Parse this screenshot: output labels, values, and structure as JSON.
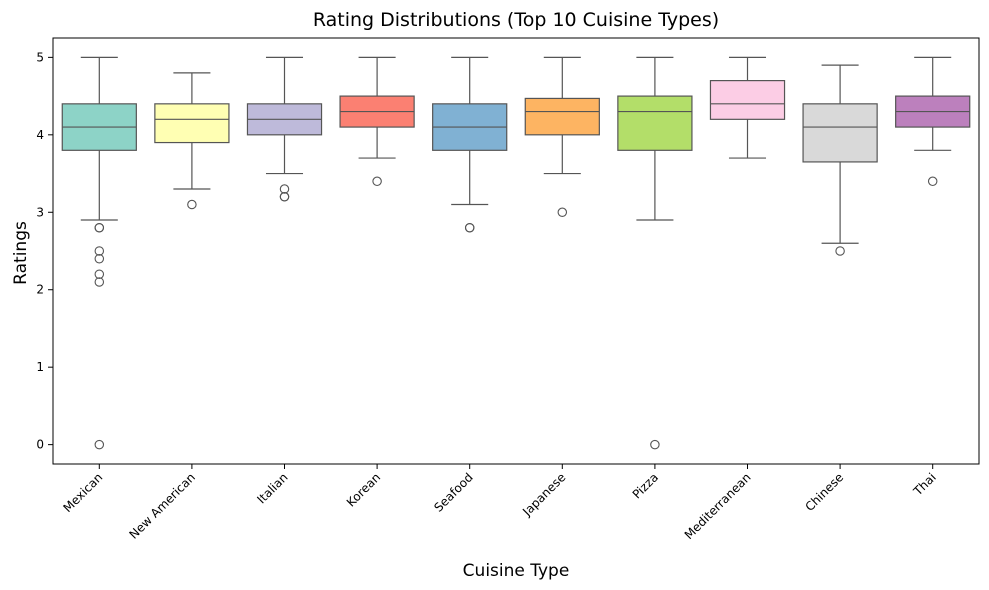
{
  "chart_data": {
    "type": "box",
    "title": "Rating Distributions (Top 10 Cuisine Types)",
    "xlabel": "Cuisine Type",
    "ylabel": "Ratings",
    "ylim": [
      -0.25,
      5.25
    ],
    "yticks": [
      0,
      1,
      2,
      3,
      4,
      5
    ],
    "grid": false,
    "categories": [
      "Mexican",
      "New American",
      "Italian",
      "Korean",
      "Seafood",
      "Japanese",
      "Pizza",
      "Mediterranean",
      "Chinese",
      "Thai"
    ],
    "colors": [
      "#8dd3c7",
      "#ffffb3",
      "#bebada",
      "#fb8072",
      "#80b1d3",
      "#fdb462",
      "#b3de69",
      "#fccde5",
      "#d9d9d9",
      "#bc80bd"
    ],
    "boxes": [
      {
        "whisker_low": 2.9,
        "q1": 3.8,
        "median": 4.1,
        "q3": 4.4,
        "whisker_high": 5.0,
        "outliers": [
          2.8,
          2.8,
          2.5,
          2.4,
          2.2,
          2.1,
          0.0
        ]
      },
      {
        "whisker_low": 3.3,
        "q1": 3.9,
        "median": 4.2,
        "q3": 4.4,
        "whisker_high": 4.8,
        "outliers": [
          3.1
        ]
      },
      {
        "whisker_low": 3.5,
        "q1": 4.0,
        "median": 4.2,
        "q3": 4.4,
        "whisker_high": 5.0,
        "outliers": [
          3.3,
          3.2,
          3.2
        ]
      },
      {
        "whisker_low": 3.7,
        "q1": 4.1,
        "median": 4.3,
        "q3": 4.5,
        "whisker_high": 5.0,
        "outliers": [
          3.4
        ]
      },
      {
        "whisker_low": 3.1,
        "q1": 3.8,
        "median": 4.1,
        "q3": 4.4,
        "whisker_high": 5.0,
        "outliers": [
          2.8,
          2.8
        ]
      },
      {
        "whisker_low": 3.5,
        "q1": 4.0,
        "median": 4.3,
        "q3": 4.47,
        "whisker_high": 5.0,
        "outliers": [
          3.0
        ]
      },
      {
        "whisker_low": 2.9,
        "q1": 3.8,
        "median": 4.3,
        "q3": 4.5,
        "whisker_high": 5.0,
        "outliers": [
          0.0
        ]
      },
      {
        "whisker_low": 3.7,
        "q1": 4.2,
        "median": 4.4,
        "q3": 4.7,
        "whisker_high": 5.0,
        "outliers": []
      },
      {
        "whisker_low": 2.6,
        "q1": 3.65,
        "median": 4.1,
        "q3": 4.4,
        "whisker_high": 4.9,
        "outliers": [
          2.5
        ]
      },
      {
        "whisker_low": 3.8,
        "q1": 4.1,
        "median": 4.3,
        "q3": 4.5,
        "whisker_high": 5.0,
        "outliers": [
          3.4
        ]
      }
    ]
  }
}
